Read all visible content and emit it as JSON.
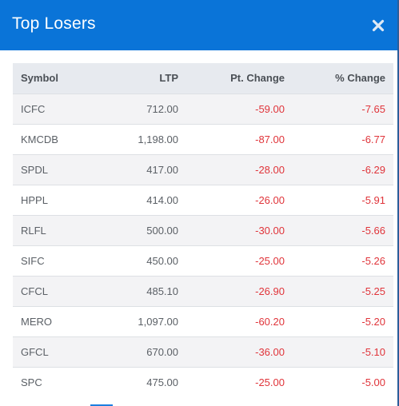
{
  "modal": {
    "title": "Top Losers",
    "close_icon": "close-x-icon",
    "accent_color": "#0a74d8",
    "negative_color": "#e0343a"
  },
  "table": {
    "headers": {
      "symbol": "Symbol",
      "ltp": "LTP",
      "pt_change": "Pt. Change",
      "pct_change": "% Change"
    },
    "rows": [
      {
        "symbol": "ICFC",
        "ltp": "712.00",
        "pt_change": "-59.00",
        "pct_change": "-7.65"
      },
      {
        "symbol": "KMCDB",
        "ltp": "1,198.00",
        "pt_change": "-87.00",
        "pct_change": "-6.77"
      },
      {
        "symbol": "SPDL",
        "ltp": "417.00",
        "pt_change": "-28.00",
        "pct_change": "-6.29"
      },
      {
        "symbol": "HPPL",
        "ltp": "414.00",
        "pt_change": "-26.00",
        "pct_change": "-5.91"
      },
      {
        "symbol": "RLFL",
        "ltp": "500.00",
        "pt_change": "-30.00",
        "pct_change": "-5.66"
      },
      {
        "symbol": "SIFC",
        "ltp": "450.00",
        "pt_change": "-25.00",
        "pct_change": "-5.26"
      },
      {
        "symbol": "CFCL",
        "ltp": "485.10",
        "pt_change": "-26.90",
        "pct_change": "-5.25"
      },
      {
        "symbol": "MERO",
        "ltp": "1,097.00",
        "pt_change": "-60.20",
        "pct_change": "-5.20"
      },
      {
        "symbol": "GFCL",
        "ltp": "670.00",
        "pt_change": "-36.00",
        "pct_change": "-5.10"
      },
      {
        "symbol": "SPC",
        "ltp": "475.00",
        "pt_change": "-25.00",
        "pct_change": "-5.00"
      }
    ]
  }
}
